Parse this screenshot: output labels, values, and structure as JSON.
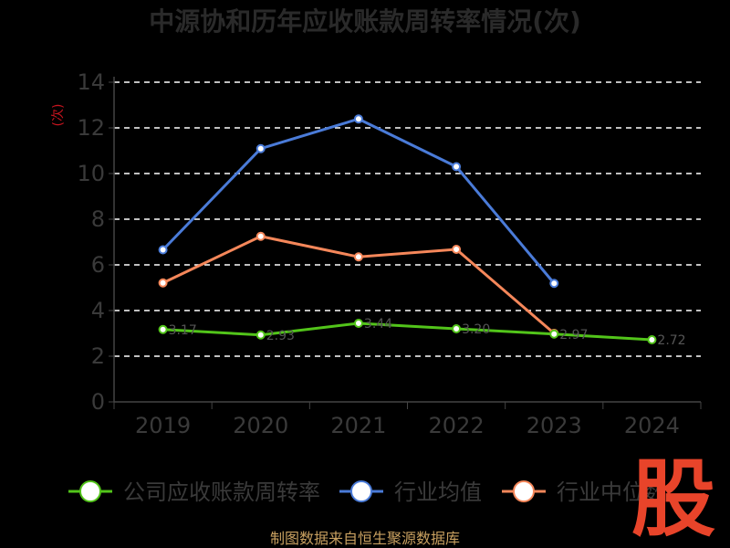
{
  "chart_data": {
    "type": "line",
    "title": "中源协和历年应收账款周转率情况(次)",
    "ylabel": "(次)",
    "xlabel": "",
    "ylim": [
      0,
      14
    ],
    "yticks": [
      0,
      2,
      4,
      6,
      8,
      10,
      12,
      14
    ],
    "categories": [
      "2019",
      "2020",
      "2021",
      "2022",
      "2023",
      "2024"
    ],
    "grid": true,
    "legend_position": "bottom",
    "series": [
      {
        "name": "公司应收账款周转率",
        "color": "#52c41a",
        "values": [
          3.17,
          2.93,
          3.44,
          3.2,
          2.97,
          2.72
        ],
        "labels": [
          "3.17",
          "2.93",
          "3.44",
          "3.20",
          "2.97",
          "2.72"
        ]
      },
      {
        "name": "行业均值",
        "color": "#4a7bd8",
        "values": [
          6.66,
          11.09,
          12.39,
          10.3,
          5.19,
          null
        ]
      },
      {
        "name": "行业中位数",
        "color": "#f5875a",
        "values": [
          5.21,
          7.25,
          6.35,
          6.68,
          3.0,
          null
        ]
      }
    ]
  },
  "source": "制图数据来自恒生聚源数据库",
  "logo": "股"
}
